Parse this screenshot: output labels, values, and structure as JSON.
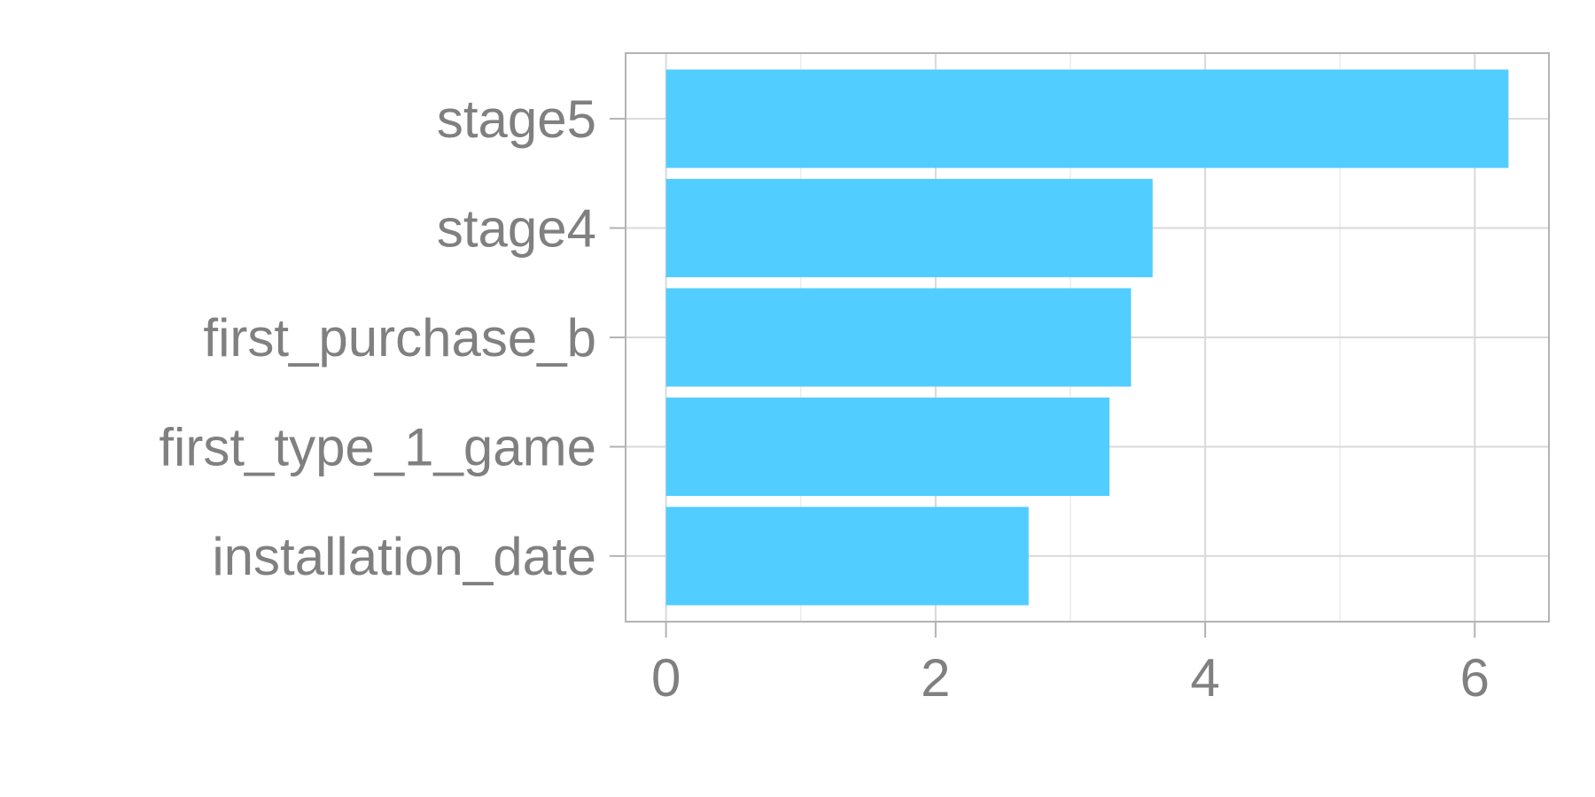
{
  "chart_data": {
    "type": "bar",
    "orientation": "horizontal",
    "categories": [
      "stage5",
      "stage4",
      "first_purchase_b",
      "first_type_1_game",
      "installation_date"
    ],
    "values": [
      6.25,
      3.61,
      3.45,
      3.29,
      2.69
    ],
    "x_ticks": [
      "0",
      "2",
      "4",
      "6"
    ],
    "xlim": [
      -0.3,
      6.55
    ],
    "title": "",
    "xlabel": "",
    "ylabel": "",
    "grid": true,
    "legend": "none",
    "colors": {
      "bar": "#52CDFF",
      "grid_major": "#D9D9D9",
      "grid_minor": "#EBEBEB",
      "panel_border": "#B3B3B3",
      "text": "#808080"
    }
  }
}
